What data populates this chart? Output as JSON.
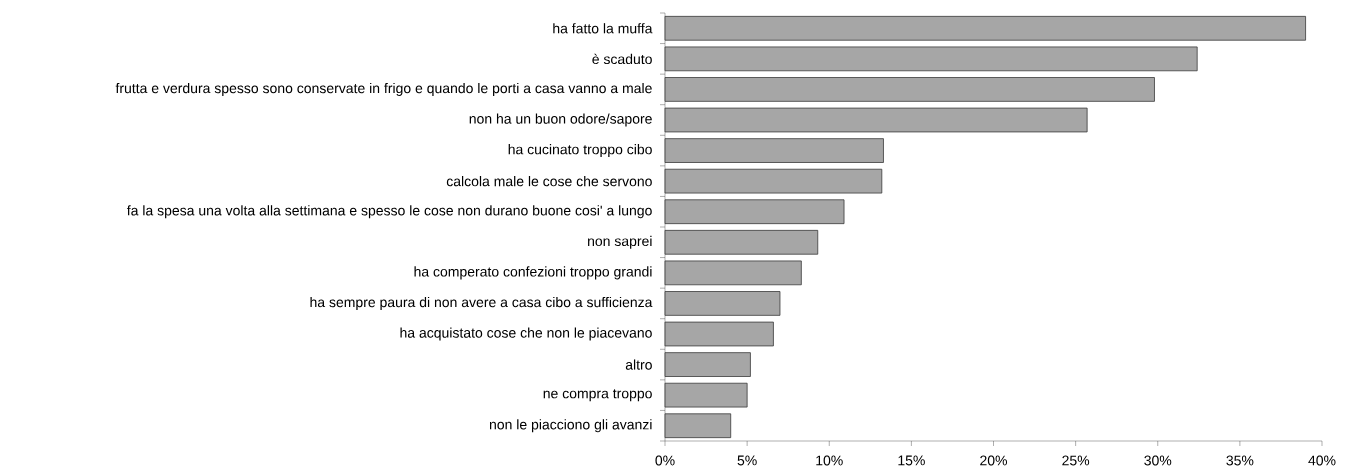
{
  "chart_data": {
    "type": "bar",
    "orientation": "horizontal",
    "categories": [
      "ha fatto la muffa",
      "è scaduto",
      "frutta e verdura spesso sono conservate in frigo e quando le porti a casa vanno a male",
      "non ha un buon odore/sapore",
      "ha cucinato troppo cibo",
      "calcola male le cose che servono",
      "fa la spesa una volta alla settimana e spesso le cose non durano buone cosi' a lungo",
      "non saprei",
      "ha comperato confezioni troppo grandi",
      "ha sempre paura di non avere a casa cibo a sufficienza",
      "ha acquistato cose che non le piacevano",
      "altro",
      "ne compra troppo",
      "non le piacciono gli avanzi"
    ],
    "values": [
      39.0,
      32.4,
      29.8,
      25.7,
      13.3,
      13.2,
      10.9,
      9.3,
      8.3,
      7.0,
      6.6,
      5.2,
      5.0,
      4.0
    ],
    "color": "#a6a6a6",
    "xlim": [
      0,
      40
    ],
    "xticks": [
      {
        "value": 0,
        "label": "0%"
      },
      {
        "value": 5,
        "label": "5%"
      },
      {
        "value": 10,
        "label": "10%"
      },
      {
        "value": 15,
        "label": "15%"
      },
      {
        "value": 20,
        "label": "20%"
      },
      {
        "value": 25,
        "label": "25%"
      },
      {
        "value": 30,
        "label": "30%"
      },
      {
        "value": 35,
        "label": "35%"
      },
      {
        "value": 40,
        "label": "40%"
      }
    ]
  }
}
